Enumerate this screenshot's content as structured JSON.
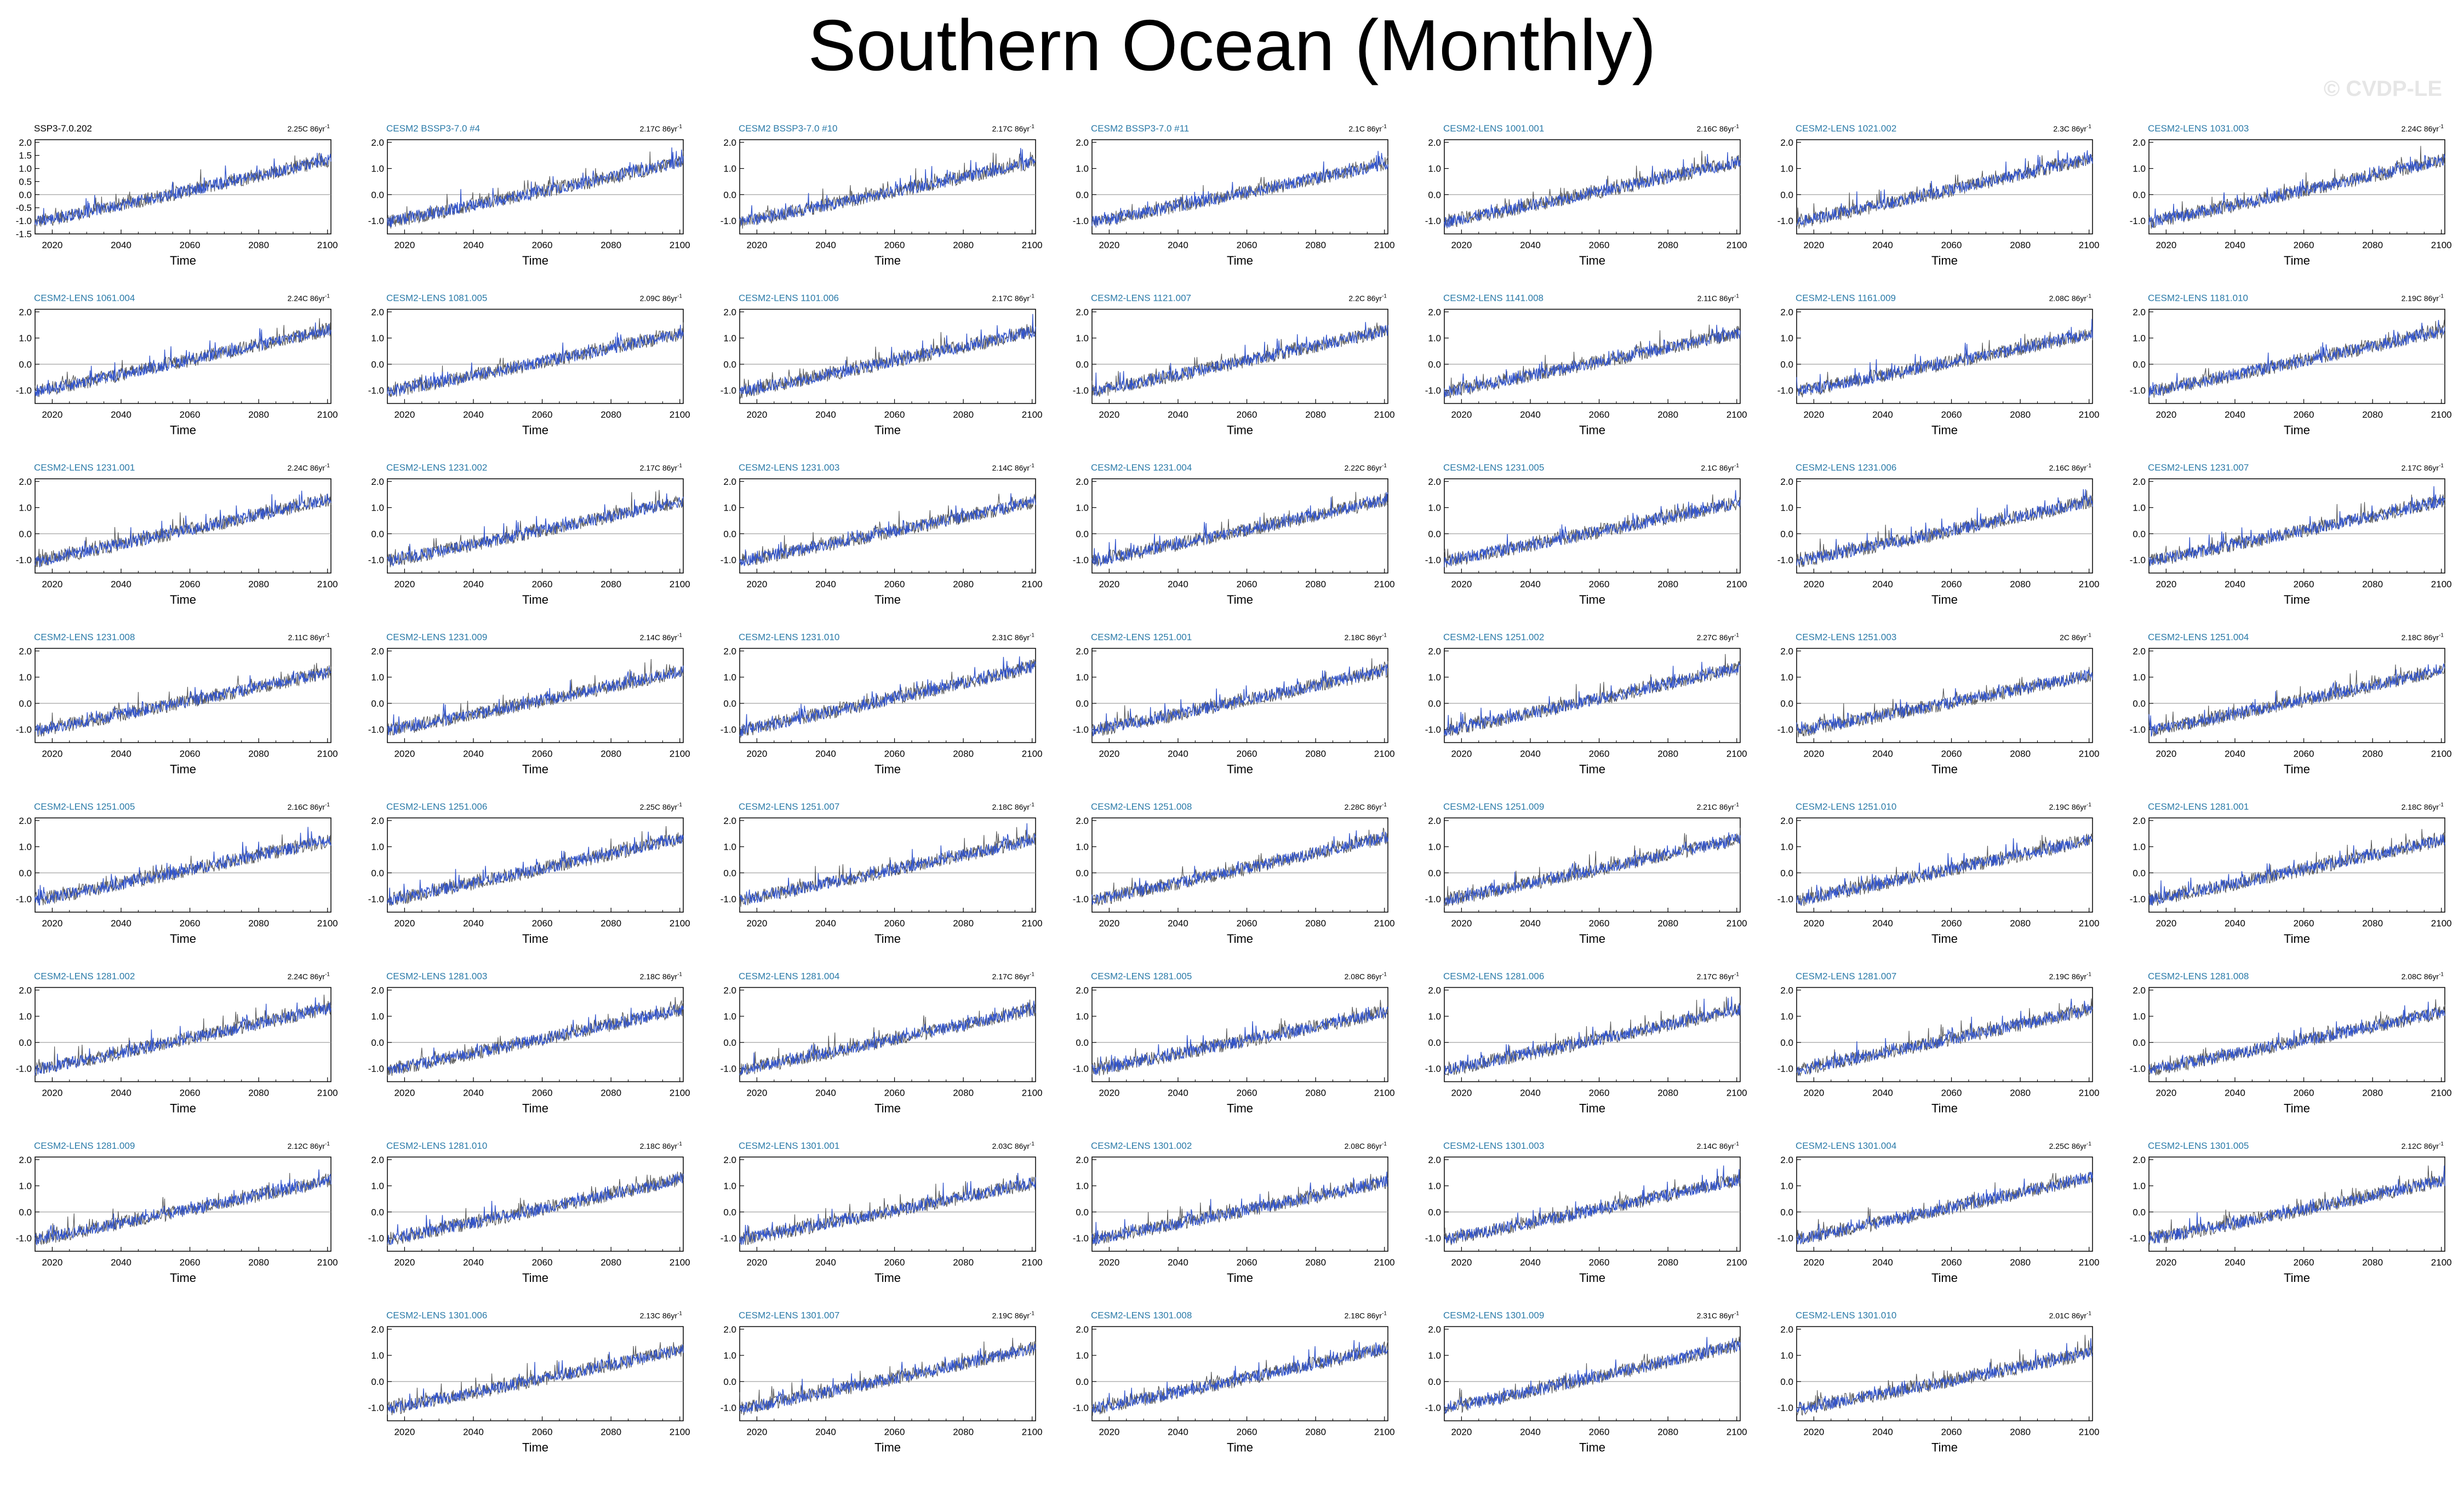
{
  "title": "Southern Ocean (Monthly)",
  "watermark": "© CVDP-LE",
  "colors": {
    "ensemble_line": "#3355cc",
    "reference_line": "#555555",
    "label_first": "#000000",
    "label": "#2a7aa8",
    "zero_line": "#999999"
  },
  "chart_data": {
    "type": "line",
    "layout": "small-multiples",
    "xlabel": "Time",
    "x_ticks": [
      2020,
      2040,
      2060,
      2080,
      2100
    ],
    "xlim": [
      2015,
      2101
    ],
    "y_ticks_full": [
      "2.0",
      "1.5",
      "1.0",
      "0.5",
      "0.0",
      "-0.5",
      "-1.0",
      "-1.5"
    ],
    "y_ticks": [
      "2.0",
      "1.0",
      "0.0",
      "-1.0"
    ],
    "ylim": [
      -1.5,
      2.1
    ],
    "trend_unit": "86yr",
    "trend_exponent": "-1",
    "panels": [
      {
        "name": "SSP3-7.0.202",
        "trend": "2.25C"
      },
      {
        "name": "CESM2 BSSP3-7.0 #4",
        "trend": "2.17C"
      },
      {
        "name": "CESM2 BSSP3-7.0 #10",
        "trend": "2.17C"
      },
      {
        "name": "CESM2 BSSP3-7.0 #11",
        "trend": "2.1C"
      },
      {
        "name": "CESM2-LENS 1001.001",
        "trend": "2.16C"
      },
      {
        "name": "CESM2-LENS 1021.002",
        "trend": "2.3C"
      },
      {
        "name": "CESM2-LENS 1031.003",
        "trend": "2.24C"
      },
      {
        "name": "CESM2-LENS 1061.004",
        "trend": "2.24C"
      },
      {
        "name": "CESM2-LENS 1081.005",
        "trend": "2.09C"
      },
      {
        "name": "CESM2-LENS 1101.006",
        "trend": "2.17C"
      },
      {
        "name": "CESM2-LENS 1121.007",
        "trend": "2.2C"
      },
      {
        "name": "CESM2-LENS 1141.008",
        "trend": "2.11C"
      },
      {
        "name": "CESM2-LENS 1161.009",
        "trend": "2.08C"
      },
      {
        "name": "CESM2-LENS 1181.010",
        "trend": "2.19C"
      },
      {
        "name": "CESM2-LENS 1231.001",
        "trend": "2.24C"
      },
      {
        "name": "CESM2-LENS 1231.002",
        "trend": "2.17C"
      },
      {
        "name": "CESM2-LENS 1231.003",
        "trend": "2.14C"
      },
      {
        "name": "CESM2-LENS 1231.004",
        "trend": "2.22C"
      },
      {
        "name": "CESM2-LENS 1231.005",
        "trend": "2.1C"
      },
      {
        "name": "CESM2-LENS 1231.006",
        "trend": "2.16C"
      },
      {
        "name": "CESM2-LENS 1231.007",
        "trend": "2.17C"
      },
      {
        "name": "CESM2-LENS 1231.008",
        "trend": "2.11C"
      },
      {
        "name": "CESM2-LENS 1231.009",
        "trend": "2.14C"
      },
      {
        "name": "CESM2-LENS 1231.010",
        "trend": "2.31C"
      },
      {
        "name": "CESM2-LENS 1251.001",
        "trend": "2.18C"
      },
      {
        "name": "CESM2-LENS 1251.002",
        "trend": "2.27C"
      },
      {
        "name": "CESM2-LENS 1251.003",
        "trend": "2C"
      },
      {
        "name": "CESM2-LENS 1251.004",
        "trend": "2.18C"
      },
      {
        "name": "CESM2-LENS 1251.005",
        "trend": "2.16C"
      },
      {
        "name": "CESM2-LENS 1251.006",
        "trend": "2.25C"
      },
      {
        "name": "CESM2-LENS 1251.007",
        "trend": "2.18C"
      },
      {
        "name": "CESM2-LENS 1251.008",
        "trend": "2.28C"
      },
      {
        "name": "CESM2-LENS 1251.009",
        "trend": "2.21C"
      },
      {
        "name": "CESM2-LENS 1251.010",
        "trend": "2.19C"
      },
      {
        "name": "CESM2-LENS 1281.001",
        "trend": "2.18C"
      },
      {
        "name": "CESM2-LENS 1281.002",
        "trend": "2.24C"
      },
      {
        "name": "CESM2-LENS 1281.003",
        "trend": "2.18C"
      },
      {
        "name": "CESM2-LENS 1281.004",
        "trend": "2.17C"
      },
      {
        "name": "CESM2-LENS 1281.005",
        "trend": "2.08C"
      },
      {
        "name": "CESM2-LENS 1281.006",
        "trend": "2.17C"
      },
      {
        "name": "CESM2-LENS 1281.007",
        "trend": "2.19C"
      },
      {
        "name": "CESM2-LENS 1281.008",
        "trend": "2.08C"
      },
      {
        "name": "CESM2-LENS 1281.009",
        "trend": "2.12C"
      },
      {
        "name": "CESM2-LENS 1281.010",
        "trend": "2.18C"
      },
      {
        "name": "CESM2-LENS 1301.001",
        "trend": "2.03C"
      },
      {
        "name": "CESM2-LENS 1301.002",
        "trend": "2.08C"
      },
      {
        "name": "CESM2-LENS 1301.003",
        "trend": "2.14C"
      },
      {
        "name": "CESM2-LENS 1301.004",
        "trend": "2.25C"
      },
      {
        "name": "CESM2-LENS 1301.005",
        "trend": "2.12C"
      },
      {
        "name": "CESM2-LENS 1301.006",
        "trend": "2.13C"
      },
      {
        "name": "CESM2-LENS 1301.007",
        "trend": "2.19C"
      },
      {
        "name": "CESM2-LENS 1301.008",
        "trend": "2.18C"
      },
      {
        "name": "CESM2-LENS 1301.009",
        "trend": "2.31C"
      },
      {
        "name": "CESM2-LENS 1301.010",
        "trend": "2.01C"
      }
    ]
  }
}
